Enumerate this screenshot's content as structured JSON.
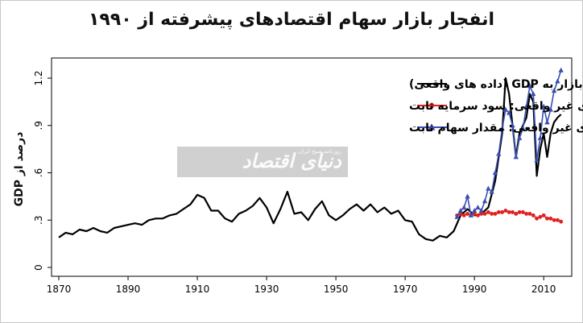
{
  "chart_data": {
    "type": "line",
    "title": "انفجار بازار سهام اقتصادهای پیشرفته از ۱۹۹۰",
    "ylabel": "درصد از GDP",
    "xlim": [
      1870,
      2016
    ],
    "ylim": [
      0,
      1.25
    ],
    "xticks": [
      1870,
      1890,
      1910,
      1930,
      1950,
      1970,
      1990,
      2010
    ],
    "yticks": [
      {
        "value": 0,
        "label": "0"
      },
      {
        "value": 0.3,
        "label": ".3"
      },
      {
        "value": 0.6,
        "label": ".6"
      },
      {
        "value": 0.9,
        "label": ".9"
      },
      {
        "value": 1.2,
        "label": "1.2"
      }
    ],
    "legend_position": "top-right",
    "series": [
      {
        "name": "ارزش بازار به GDP (داده های واقعی)",
        "color": "#000000",
        "marker": "none",
        "points": [
          [
            1870,
            0.19
          ],
          [
            1872,
            0.22
          ],
          [
            1874,
            0.21
          ],
          [
            1876,
            0.24
          ],
          [
            1878,
            0.23
          ],
          [
            1880,
            0.25
          ],
          [
            1882,
            0.23
          ],
          [
            1884,
            0.22
          ],
          [
            1886,
            0.25
          ],
          [
            1888,
            0.26
          ],
          [
            1890,
            0.27
          ],
          [
            1892,
            0.28
          ],
          [
            1894,
            0.27
          ],
          [
            1896,
            0.3
          ],
          [
            1898,
            0.31
          ],
          [
            1900,
            0.31
          ],
          [
            1902,
            0.33
          ],
          [
            1904,
            0.34
          ],
          [
            1906,
            0.37
          ],
          [
            1908,
            0.4
          ],
          [
            1910,
            0.46
          ],
          [
            1912,
            0.44
          ],
          [
            1914,
            0.36
          ],
          [
            1916,
            0.36
          ],
          [
            1918,
            0.31
          ],
          [
            1920,
            0.29
          ],
          [
            1922,
            0.34
          ],
          [
            1924,
            0.36
          ],
          [
            1926,
            0.39
          ],
          [
            1928,
            0.44
          ],
          [
            1930,
            0.38
          ],
          [
            1932,
            0.28
          ],
          [
            1934,
            0.37
          ],
          [
            1936,
            0.48
          ],
          [
            1938,
            0.34
          ],
          [
            1940,
            0.35
          ],
          [
            1942,
            0.3
          ],
          [
            1944,
            0.37
          ],
          [
            1946,
            0.42
          ],
          [
            1948,
            0.33
          ],
          [
            1950,
            0.3
          ],
          [
            1952,
            0.33
          ],
          [
            1954,
            0.37
          ],
          [
            1956,
            0.4
          ],
          [
            1958,
            0.36
          ],
          [
            1960,
            0.4
          ],
          [
            1962,
            0.35
          ],
          [
            1964,
            0.38
          ],
          [
            1966,
            0.34
          ],
          [
            1968,
            0.36
          ],
          [
            1970,
            0.3
          ],
          [
            1972,
            0.29
          ],
          [
            1974,
            0.21
          ],
          [
            1976,
            0.18
          ],
          [
            1978,
            0.17
          ],
          [
            1980,
            0.2
          ],
          [
            1982,
            0.19
          ],
          [
            1984,
            0.23
          ],
          [
            1986,
            0.33
          ],
          [
            1988,
            0.37
          ],
          [
            1990,
            0.33
          ],
          [
            1992,
            0.34
          ],
          [
            1994,
            0.38
          ],
          [
            1996,
            0.55
          ],
          [
            1998,
            0.85
          ],
          [
            1999,
            1.2
          ],
          [
            2000,
            1.1
          ],
          [
            2001,
            0.9
          ],
          [
            2002,
            0.7
          ],
          [
            2003,
            0.85
          ],
          [
            2004,
            0.9
          ],
          [
            2005,
            0.95
          ],
          [
            2006,
            1.1
          ],
          [
            2007,
            1.05
          ],
          [
            2008,
            0.58
          ],
          [
            2009,
            0.75
          ],
          [
            2010,
            0.85
          ],
          [
            2011,
            0.7
          ],
          [
            2012,
            0.85
          ],
          [
            2013,
            0.92
          ],
          [
            2014,
            0.95
          ],
          [
            2015,
            0.97
          ]
        ]
      },
      {
        "name": "داده های غیر واقعی: سود سرمایه ثابت",
        "color": "#e02020",
        "marker": "circle",
        "points": [
          [
            1985,
            0.33
          ],
          [
            1986,
            0.34
          ],
          [
            1987,
            0.33
          ],
          [
            1988,
            0.34
          ],
          [
            1989,
            0.33
          ],
          [
            1990,
            0.34
          ],
          [
            1991,
            0.33
          ],
          [
            1992,
            0.34
          ],
          [
            1993,
            0.34
          ],
          [
            1994,
            0.35
          ],
          [
            1995,
            0.34
          ],
          [
            1996,
            0.34
          ],
          [
            1997,
            0.35
          ],
          [
            1998,
            0.35
          ],
          [
            1999,
            0.36
          ],
          [
            2000,
            0.35
          ],
          [
            2001,
            0.35
          ],
          [
            2002,
            0.34
          ],
          [
            2003,
            0.35
          ],
          [
            2004,
            0.35
          ],
          [
            2005,
            0.34
          ],
          [
            2006,
            0.34
          ],
          [
            2007,
            0.33
          ],
          [
            2008,
            0.31
          ],
          [
            2009,
            0.32
          ],
          [
            2010,
            0.33
          ],
          [
            2011,
            0.31
          ],
          [
            2012,
            0.31
          ],
          [
            2013,
            0.3
          ],
          [
            2014,
            0.3
          ],
          [
            2015,
            0.29
          ]
        ]
      },
      {
        "name": "داده های غیر واقعی: مقدار سهام ثابت",
        "color": "#3a4fb0",
        "marker": "triangle",
        "points": [
          [
            1985,
            0.32
          ],
          [
            1986,
            0.36
          ],
          [
            1987,
            0.38
          ],
          [
            1988,
            0.45
          ],
          [
            1989,
            0.33
          ],
          [
            1990,
            0.36
          ],
          [
            1991,
            0.38
          ],
          [
            1992,
            0.36
          ],
          [
            1993,
            0.42
          ],
          [
            1994,
            0.5
          ],
          [
            1995,
            0.48
          ],
          [
            1996,
            0.6
          ],
          [
            1997,
            0.72
          ],
          [
            1998,
            0.88
          ],
          [
            1999,
            1.0
          ],
          [
            2000,
            0.98
          ],
          [
            2001,
            0.9
          ],
          [
            2002,
            0.7
          ],
          [
            2003,
            0.82
          ],
          [
            2004,
            0.88
          ],
          [
            2005,
            1.02
          ],
          [
            2006,
            1.15
          ],
          [
            2007,
            1.1
          ],
          [
            2008,
            0.68
          ],
          [
            2009,
            0.82
          ],
          [
            2010,
            1.02
          ],
          [
            2011,
            0.92
          ],
          [
            2012,
            1.0
          ],
          [
            2013,
            1.12
          ],
          [
            2014,
            1.18
          ],
          [
            2015,
            1.25
          ]
        ]
      }
    ]
  },
  "watermark": {
    "text": "دنیای اقتصاد",
    "subtext": "روزنامه صبح ایران"
  }
}
